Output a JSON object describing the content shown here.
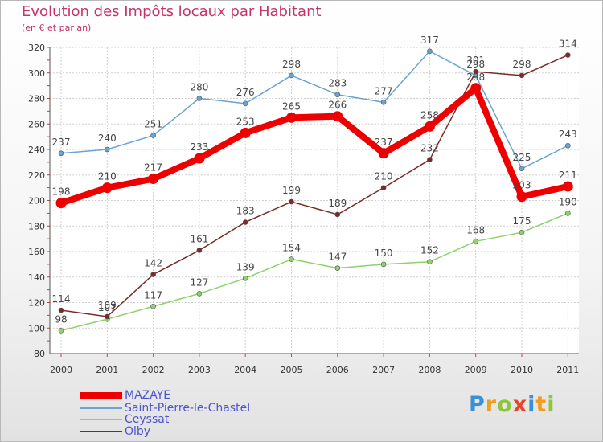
{
  "chart_data": {
    "type": "line",
    "title": "Evolution des Impôts locaux par Habitant",
    "subtitle": "(en € et par an)",
    "x": [
      "2000",
      "2001",
      "2002",
      "2003",
      "2004",
      "2005",
      "2006",
      "2007",
      "2008",
      "2009",
      "2010",
      "2011"
    ],
    "y_ticks": [
      "80",
      "100",
      "120",
      "140",
      "160",
      "180",
      "200",
      "220",
      "240",
      "260",
      "280",
      "300",
      "320"
    ],
    "ylim": [
      80,
      320
    ],
    "grid": true,
    "series": [
      {
        "name": "Ceyssat",
        "color": "#8fd16a",
        "values": [
          98,
          107,
          117,
          127,
          139,
          154,
          147,
          150,
          152,
          168,
          175,
          190
        ],
        "labels": [
          "98",
          "107",
          "117",
          "127",
          "139",
          "154",
          "147",
          "150",
          "152",
          "168",
          "175",
          "190"
        ]
      },
      {
        "name": "Olby",
        "color": "#7a2a2a",
        "values": [
          114,
          109,
          142,
          161,
          183,
          199,
          189,
          210,
          232,
          301,
          298,
          314
        ],
        "labels": [
          "114",
          "109",
          "142",
          "161",
          "183",
          "199",
          "189",
          "210",
          "232",
          "301",
          "298",
          "314"
        ]
      },
      {
        "name": "Saint-Pierre-le-Chastel",
        "color": "#6aa3d4",
        "values": [
          237,
          240,
          251,
          280,
          276,
          298,
          283,
          277,
          317,
          298,
          225,
          243
        ],
        "labels": [
          "237",
          "240",
          "251",
          "280",
          "276",
          "298",
          "283",
          "277",
          "317",
          "298",
          "225",
          "243"
        ]
      },
      {
        "name": "MAZAYE",
        "color": "#ee0000",
        "values": [
          198,
          210,
          217,
          233,
          253,
          265,
          266,
          237,
          258,
          288,
          203,
          211
        ],
        "labels": [
          "198",
          "210",
          "217",
          "233",
          "253",
          "265",
          "266",
          "237",
          "258",
          "288",
          "203",
          "211"
        ]
      }
    ],
    "legend": [
      "MAZAYE",
      "Saint-Pierre-le-Chastel",
      "Ceyssat",
      "Olby"
    ]
  },
  "brand": {
    "letters": [
      "P",
      "r",
      "o",
      "x",
      "i",
      "t",
      "i"
    ],
    "colors": [
      "#3b8fd6",
      "#f29d1f",
      "#8cc63f",
      "#e6452b",
      "#3b8fd6",
      "#f29d1f",
      "#8cc63f"
    ]
  }
}
